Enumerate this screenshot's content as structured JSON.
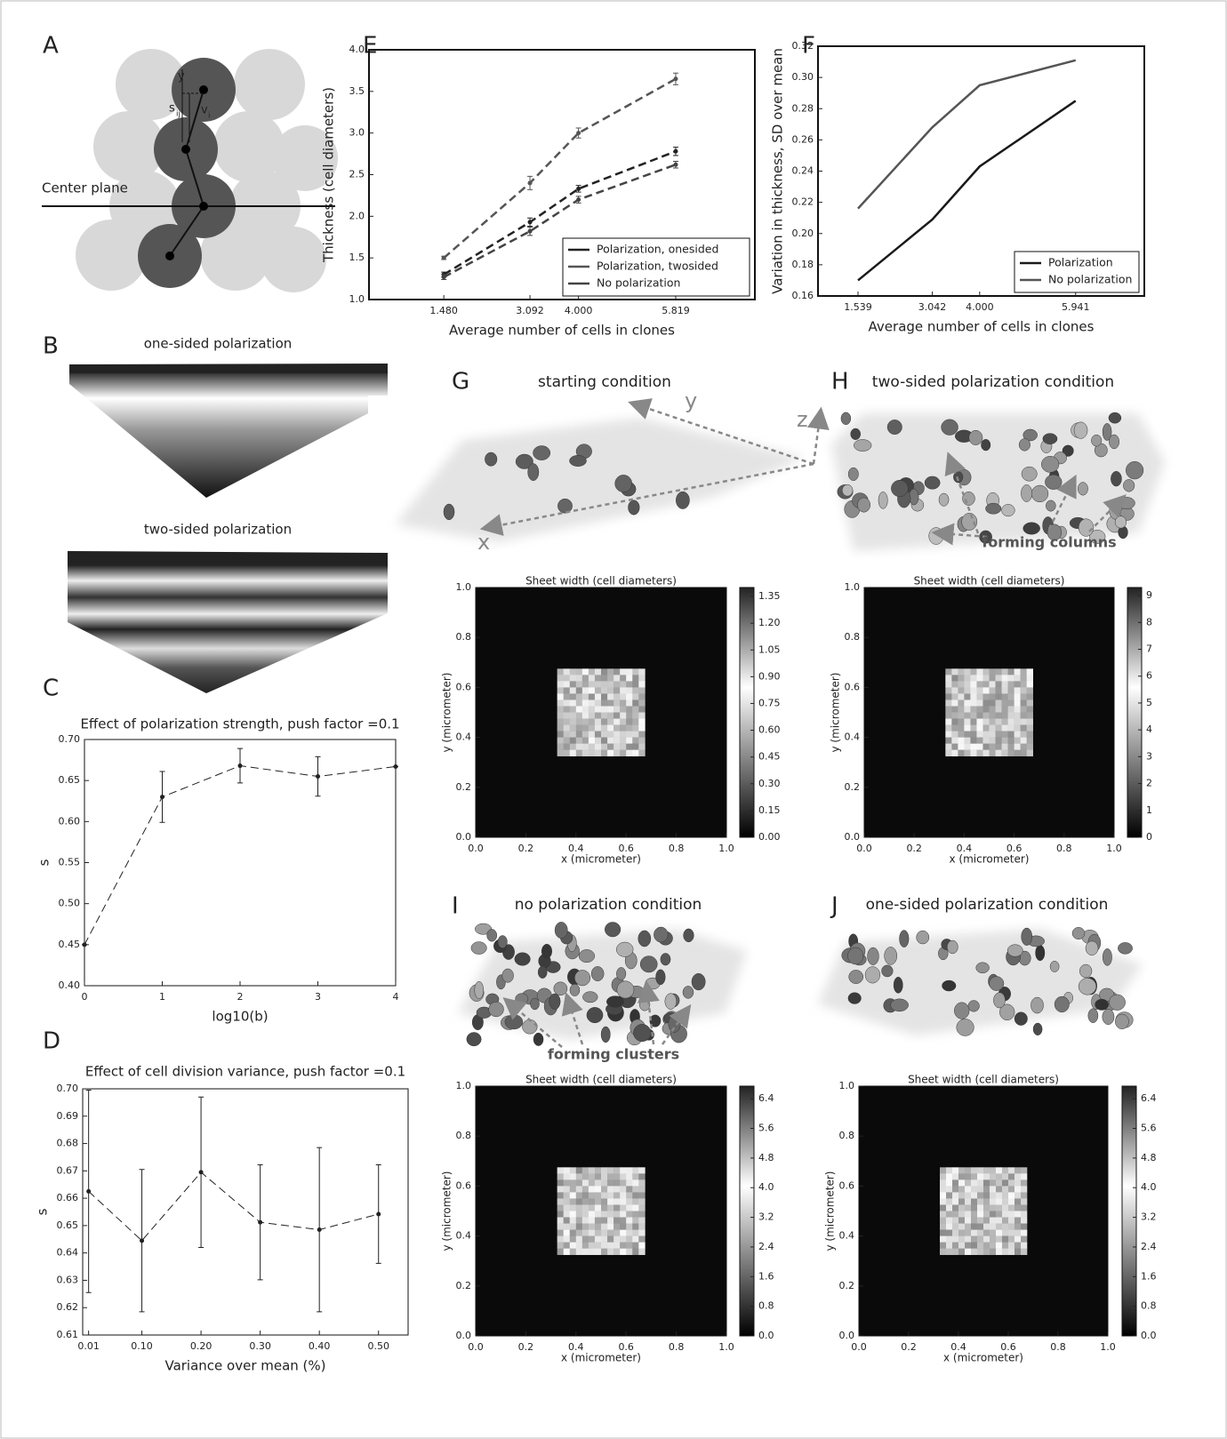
{
  "panels": {
    "A": "A",
    "B": "B",
    "C": "C",
    "D": "D",
    "E": "E",
    "F": "F",
    "G": "G",
    "H": "H",
    "I": "I",
    "J": "J"
  },
  "diagram": {
    "y": "y",
    "s": "s",
    "s_sub": "ij",
    "v": "v",
    "v_sub": "i",
    "center_plane": "Center plane"
  },
  "slabs": {
    "one_sided": "one-sided polarization",
    "two_sided": "two-sided polarization"
  },
  "renders": {
    "G": {
      "title": "starting condition",
      "axis_y": "y",
      "axis_z": "z",
      "axis_x": "x"
    },
    "H": {
      "title": "two-sided polarization condition",
      "annotation": "forming columns"
    },
    "I": {
      "title": "no polarization condition",
      "annotation": "forming clusters"
    },
    "J": {
      "title": "one-sided polarization condition"
    }
  },
  "chart_data": [
    {
      "type": "line",
      "title": "Effect of polarization strength, push factor =0.1",
      "xlabel": "log10(b)",
      "ylabel": "s",
      "x": [
        0,
        1,
        2,
        3,
        4
      ],
      "values": [
        0.45,
        0.63,
        0.668,
        0.655,
        0.667
      ],
      "errors": [
        0,
        0.031,
        0.021,
        0.024,
        0
      ],
      "color": "#222222",
      "linestyle": "dashed",
      "markers": true,
      "xlim": [
        0,
        4
      ],
      "xticks": [
        0,
        1,
        2,
        3,
        4
      ],
      "ylim": [
        0.4,
        0.7
      ],
      "yticks": [
        {
          "value": 0.4,
          "label": "0.40"
        },
        0.45,
        {
          "value": 0.5,
          "label": "0.50"
        },
        0.55,
        {
          "value": 0.6,
          "label": "0.60"
        },
        0.65,
        {
          "value": 0.7,
          "label": "0.70"
        }
      ]
    },
    {
      "type": "line",
      "title": "Effect of cell division variance, push factor =0.1",
      "xlabel": "Variance over mean (%)",
      "ylabel": "s",
      "x": [
        0.01,
        0.1,
        0.2,
        0.3,
        0.4,
        0.5
      ],
      "values": [
        0.6625,
        0.6445,
        0.6695,
        0.6512,
        0.6485,
        0.6542
      ],
      "errors": [
        0.037,
        0.026,
        0.0275,
        0.021,
        0.03,
        0.018
      ],
      "color": "#222222",
      "linestyle": "dashed",
      "markers": true,
      "xlim": [
        0,
        0.55
      ],
      "xticks": [
        0.01,
        {
          "value": 0.1,
          "label": "0.10"
        },
        {
          "value": 0.2,
          "label": "0.20"
        },
        {
          "value": 0.3,
          "label": "0.30"
        },
        {
          "value": 0.4,
          "label": "0.40"
        },
        {
          "value": 0.5,
          "label": "0.50"
        }
      ],
      "ylim": [
        0.61,
        0.7
      ],
      "yticks": [
        0.61,
        0.62,
        0.63,
        0.64,
        0.65,
        0.66,
        0.67,
        0.68,
        0.69,
        {
          "value": 0.7,
          "label": "0.70"
        }
      ]
    },
    {
      "type": "line",
      "xlabel": "Average number of cells in clones",
      "ylabel": "Thickness (cell diameters)",
      "x": [
        1.48,
        3.092,
        4.0,
        5.819
      ],
      "linestyle": "dashed",
      "markers": true,
      "legend": "lower right",
      "series": [
        {
          "name": "Polarization, onesided",
          "color": "#222222",
          "values": [
            1.3,
            1.93,
            2.33,
            2.78
          ],
          "errors": [
            0.03,
            0.05,
            0.04,
            0.05
          ]
        },
        {
          "name": "Polarization, twosided",
          "color": "#555555",
          "values": [
            1.5,
            2.4,
            3.0,
            3.65
          ],
          "errors": [
            0.02,
            0.08,
            0.06,
            0.07
          ]
        },
        {
          "name": "No polarization",
          "color": "#444444",
          "values": [
            1.27,
            1.82,
            2.2,
            2.62
          ],
          "errors": [
            0.03,
            0.05,
            0.04,
            0.04
          ]
        }
      ],
      "xlim": [
        0.08,
        7.3
      ],
      "xticks": [
        {
          "value": 1.48,
          "label": "1.480"
        },
        3.092,
        {
          "value": 4.0,
          "label": "4.000"
        },
        5.819
      ],
      "ylim": [
        1.0,
        4.0
      ],
      "yticks": [
        {
          "value": 1.0,
          "label": "1.0"
        },
        1.5,
        {
          "value": 2.0,
          "label": "2.0"
        },
        2.5,
        {
          "value": 3.0,
          "label": "3.0"
        },
        3.5,
        {
          "value": 4.0,
          "label": "4.0"
        }
      ]
    },
    {
      "type": "line",
      "xlabel": "Average number of cells in clones",
      "ylabel": "Variation in thickness, SD over mean",
      "x": [
        1.539,
        3.042,
        4.0,
        5.941
      ],
      "linestyle": "solid",
      "markers": false,
      "legend": "lower right",
      "series": [
        {
          "name": "Polarization",
          "color": "#1a1a1a",
          "values": [
            0.17,
            0.209,
            0.243,
            0.285
          ]
        },
        {
          "name": "No polarization",
          "color": "#555555",
          "values": [
            0.216,
            0.268,
            0.295,
            0.311
          ]
        }
      ],
      "xlim": [
        0.73,
        7.33
      ],
      "xticks": [
        1.539,
        3.042,
        {
          "value": 4.0,
          "label": "4.000"
        },
        5.941
      ],
      "ylim": [
        0.16,
        0.32
      ],
      "yticks": [
        0.16,
        0.18,
        {
          "value": 0.2,
          "label": "0.20"
        },
        0.22,
        0.24,
        0.26,
        0.28,
        {
          "value": 0.3,
          "label": "0.30"
        },
        0.32
      ]
    },
    {
      "type": "heatmap",
      "title": "Sheet width (cell diameters)",
      "xlabel": "x (micrometer)",
      "ylabel": "y (micrometer)",
      "patch": [
        0.33,
        0.67
      ],
      "xlim": [
        0,
        1
      ],
      "xticks": [
        {
          "value": 0,
          "label": "0.0"
        },
        0.2,
        0.4,
        0.6,
        0.8,
        {
          "value": 1,
          "label": "1.0"
        }
      ],
      "ylim": [
        0,
        1
      ],
      "yticks": [
        {
          "value": 0,
          "label": "0.0"
        },
        0.2,
        0.4,
        0.6,
        0.8,
        {
          "value": 1,
          "label": "1.0"
        }
      ],
      "clim": [
        0,
        1.4
      ],
      "cticks": [
        {
          "value": 0,
          "label": "0.00"
        },
        0.15,
        {
          "value": 0.3,
          "label": "0.30"
        },
        0.45,
        {
          "value": 0.6,
          "label": "0.60"
        },
        0.75,
        {
          "value": 0.9,
          "label": "0.90"
        },
        1.05,
        {
          "value": 1.2,
          "label": "1.20"
        },
        1.35
      ]
    },
    {
      "type": "heatmap",
      "title": "Sheet width (cell diameters)",
      "xlabel": "x (micrometer)",
      "ylabel": "y (micrometer)",
      "patch": [
        0.33,
        0.67
      ],
      "xlim": [
        0,
        1
      ],
      "xticks": [
        {
          "value": 0,
          "label": "0.0"
        },
        0.2,
        0.4,
        0.6,
        0.8,
        {
          "value": 1,
          "label": "1.0"
        }
      ],
      "ylim": [
        0,
        1
      ],
      "yticks": [
        {
          "value": 0,
          "label": "0.0"
        },
        0.2,
        0.4,
        0.6,
        0.8,
        {
          "value": 1,
          "label": "1.0"
        }
      ],
      "clim": [
        0,
        9.3
      ],
      "cticks": [
        0,
        1,
        2,
        3,
        4,
        5,
        6,
        7,
        8,
        9
      ]
    },
    {
      "type": "heatmap",
      "title": "Sheet width (cell diameters)",
      "xlabel": "x (micrometer)",
      "ylabel": "y (micrometer)",
      "patch": [
        0.33,
        0.67
      ],
      "xlim": [
        0,
        1
      ],
      "xticks": [
        {
          "value": 0,
          "label": "0.0"
        },
        0.2,
        0.4,
        0.6,
        0.8,
        {
          "value": 1,
          "label": "1.0"
        }
      ],
      "ylim": [
        0,
        1
      ],
      "yticks": [
        {
          "value": 0,
          "label": "0.0"
        },
        0.2,
        0.4,
        0.6,
        0.8,
        {
          "value": 1,
          "label": "1.0"
        }
      ],
      "clim": [
        0,
        6.74
      ],
      "cticks": [
        {
          "value": 0,
          "label": "0.0"
        },
        0.8,
        1.6,
        2.4,
        3.2,
        {
          "value": 4,
          "label": "4.0"
        },
        4.8,
        5.6,
        6.4
      ]
    },
    {
      "type": "heatmap",
      "title": "Sheet width (cell diameters)",
      "xlabel": "x (micrometer)",
      "ylabel": "y (micrometer)",
      "patch": [
        0.33,
        0.67
      ],
      "xlim": [
        0,
        1
      ],
      "xticks": [
        {
          "value": 0,
          "label": "0.0"
        },
        0.2,
        0.4,
        0.6,
        0.8,
        {
          "value": 1,
          "label": "1.0"
        }
      ],
      "ylim": [
        0,
        1
      ],
      "yticks": [
        {
          "value": 0,
          "label": "0.0"
        },
        0.2,
        0.4,
        0.6,
        0.8,
        {
          "value": 1,
          "label": "1.0"
        }
      ],
      "clim": [
        0,
        6.74
      ],
      "cticks": [
        {
          "value": 0,
          "label": "0.0"
        },
        0.8,
        1.6,
        2.4,
        3.2,
        {
          "value": 4,
          "label": "4.0"
        },
        4.8,
        5.6,
        6.4
      ]
    }
  ]
}
